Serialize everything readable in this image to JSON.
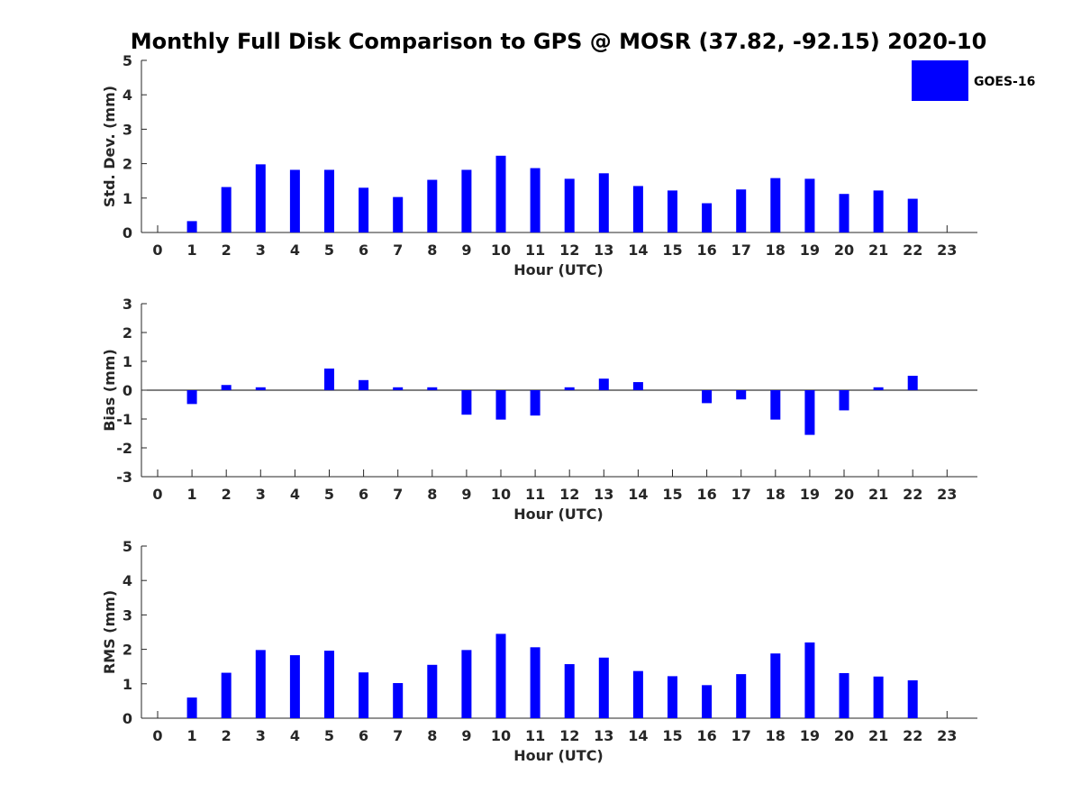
{
  "figure": {
    "title": "Monthly Full Disk Comparison to GPS @ MOSR (37.82, -92.15) 2020-10",
    "legend": {
      "label": "GOES-16",
      "color": "#0000ff",
      "placement": "top-right"
    }
  },
  "chart_data": [
    {
      "type": "bar",
      "name": "std-dev",
      "ylabel": "Std. Dev. (mm)",
      "xlabel": "Hour (UTC)",
      "ylim": [
        0,
        5
      ],
      "yticks": [
        0,
        1,
        2,
        3,
        4,
        5
      ],
      "categories": [
        "0",
        "1",
        "2",
        "3",
        "4",
        "5",
        "6",
        "7",
        "8",
        "9",
        "10",
        "11",
        "12",
        "13",
        "14",
        "15",
        "16",
        "17",
        "18",
        "19",
        "20",
        "21",
        "22",
        "23"
      ],
      "series": [
        {
          "name": "GOES-16",
          "color": "#0000ff",
          "values": [
            null,
            0.33,
            1.32,
            1.98,
            1.82,
            1.82,
            1.3,
            1.03,
            1.53,
            1.82,
            2.23,
            1.87,
            1.56,
            1.72,
            1.35,
            1.22,
            0.85,
            1.25,
            1.58,
            1.56,
            1.12,
            1.22,
            0.98,
            null
          ]
        }
      ]
    },
    {
      "type": "bar",
      "name": "bias",
      "ylabel": "Bias (mm)",
      "xlabel": "Hour (UTC)",
      "ylim": [
        -3,
        3
      ],
      "yticks": [
        -3,
        -2,
        -1,
        0,
        1,
        2,
        3
      ],
      "zero_line": true,
      "categories": [
        "0",
        "1",
        "2",
        "3",
        "4",
        "5",
        "6",
        "7",
        "8",
        "9",
        "10",
        "11",
        "12",
        "13",
        "14",
        "15",
        "16",
        "17",
        "18",
        "19",
        "20",
        "21",
        "22",
        "23"
      ],
      "series": [
        {
          "name": "GOES-16",
          "color": "#0000ff",
          "values": [
            null,
            -0.48,
            0.18,
            0.1,
            0.0,
            0.75,
            0.35,
            0.1,
            0.1,
            -0.85,
            -1.02,
            -0.88,
            0.1,
            0.4,
            0.28,
            0.0,
            -0.45,
            -0.32,
            -1.02,
            -1.55,
            -0.7,
            0.1,
            0.5,
            null
          ]
        }
      ]
    },
    {
      "type": "bar",
      "name": "rms",
      "ylabel": "RMS (mm)",
      "xlabel": "Hour (UTC)",
      "ylim": [
        0,
        5
      ],
      "yticks": [
        0,
        1,
        2,
        3,
        4,
        5
      ],
      "categories": [
        "0",
        "1",
        "2",
        "3",
        "4",
        "5",
        "6",
        "7",
        "8",
        "9",
        "10",
        "11",
        "12",
        "13",
        "14",
        "15",
        "16",
        "17",
        "18",
        "19",
        "20",
        "21",
        "22",
        "23"
      ],
      "series": [
        {
          "name": "GOES-16",
          "color": "#0000ff",
          "values": [
            null,
            0.6,
            1.32,
            1.98,
            1.83,
            1.96,
            1.33,
            1.02,
            1.55,
            1.98,
            2.45,
            2.06,
            1.57,
            1.76,
            1.37,
            1.22,
            0.96,
            1.28,
            1.88,
            2.2,
            1.31,
            1.21,
            1.1,
            null
          ]
        }
      ]
    }
  ]
}
